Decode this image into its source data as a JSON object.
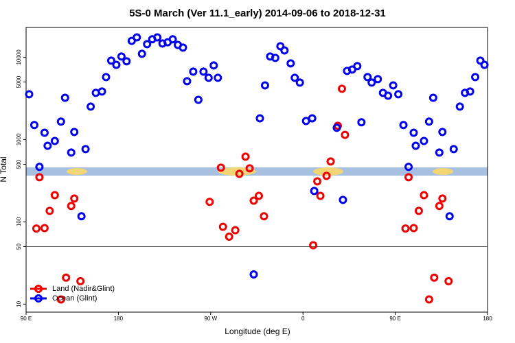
{
  "chart_data": {
    "type": "scatter",
    "title": "5S-0 March (Ver 11.1_early)   2014-09-06 to 2018-12-31",
    "x_label": "Longitude (deg E)",
    "y_label": "N Total",
    "xlim": [
      90,
      540
    ],
    "xticks": [
      {
        "value": 90,
        "label": "90 E"
      },
      180,
      {
        "value": 270,
        "label": "90 W"
      },
      {
        "value": 360,
        "label": "0"
      },
      {
        "value": 450,
        "label": "90 E"
      },
      {
        "value": 540,
        "label": "180"
      }
    ],
    "ylim": [
      8,
      23000
    ],
    "yticks": [
      10,
      50,
      100,
      500,
      1000,
      5000,
      10000
    ],
    "log_y": true,
    "reference_line": 50,
    "legend": "bottom-left",
    "series": [
      {
        "name": "Land (Nadir&Glint)",
        "color": "#ee0000",
        "x": [
          100,
          103,
          108,
          113,
          118,
          124,
          129,
          134,
          137,
          143,
          269,
          280,
          282,
          288,
          294,
          298,
          304,
          308,
          312,
          317,
          322,
          370,
          374,
          377,
          383,
          387,
          394,
          398,
          401,
          460,
          463,
          468,
          473,
          478,
          483,
          488,
          493,
          496,
          502
        ],
        "values": [
          83,
          348,
          84,
          136,
          211,
          11.4,
          21,
          156,
          192,
          19,
          175,
          455,
          87,
          66,
          79,
          383,
          619,
          447,
          181,
          207,
          117,
          52,
          310,
          207,
          362,
          541,
          1470,
          4140,
          1140,
          83,
          348,
          84,
          136,
          211,
          11.4,
          21,
          156,
          192,
          19
        ]
      },
      {
        "name": "Ocean (Glint)",
        "color": "#0000ee",
        "x": [
          93,
          98,
          103,
          108,
          111,
          118,
          124,
          128,
          134,
          137,
          144,
          148,
          153,
          158,
          164,
          168,
          173,
          178,
          183,
          188,
          193,
          198,
          203,
          208,
          213,
          218,
          223,
          228,
          233,
          238,
          243,
          247,
          253,
          258,
          263,
          268,
          273,
          277,
          312,
          318,
          323,
          328,
          333,
          338,
          342,
          348,
          352,
          357,
          363,
          369,
          371,
          393,
          399,
          417,
          403,
          408,
          413,
          423,
          427,
          433,
          438,
          443,
          448,
          453,
          458,
          463,
          468,
          470,
          478,
          483,
          487,
          493,
          496,
          503,
          507,
          513,
          518,
          523,
          528,
          533,
          537
        ],
        "values": [
          3550,
          1500,
          465,
          1210,
          840,
          960,
          1650,
          3220,
          695,
          1235,
          117,
          765,
          2510,
          3690,
          3830,
          5730,
          9090,
          8090,
          10200,
          8910,
          15800,
          17400,
          11000,
          14400,
          16500,
          17400,
          14700,
          15200,
          16500,
          14100,
          13100,
          5110,
          6680,
          3040,
          6680,
          5620,
          7940,
          5620,
          23,
          1810,
          4550,
          10200,
          9810,
          13600,
          12100,
          8410,
          5620,
          4920,
          1680,
          1810,
          237,
          1390,
          185,
          1620,
          6810,
          7080,
          7790,
          5730,
          4920,
          5410,
          3690,
          3410,
          4550,
          3550,
          1500,
          465,
          1210,
          840,
          960,
          1650,
          3220,
          695,
          1235,
          117,
          765,
          2510,
          3690,
          3830,
          5730,
          9090,
          8090
        ]
      }
    ]
  }
}
